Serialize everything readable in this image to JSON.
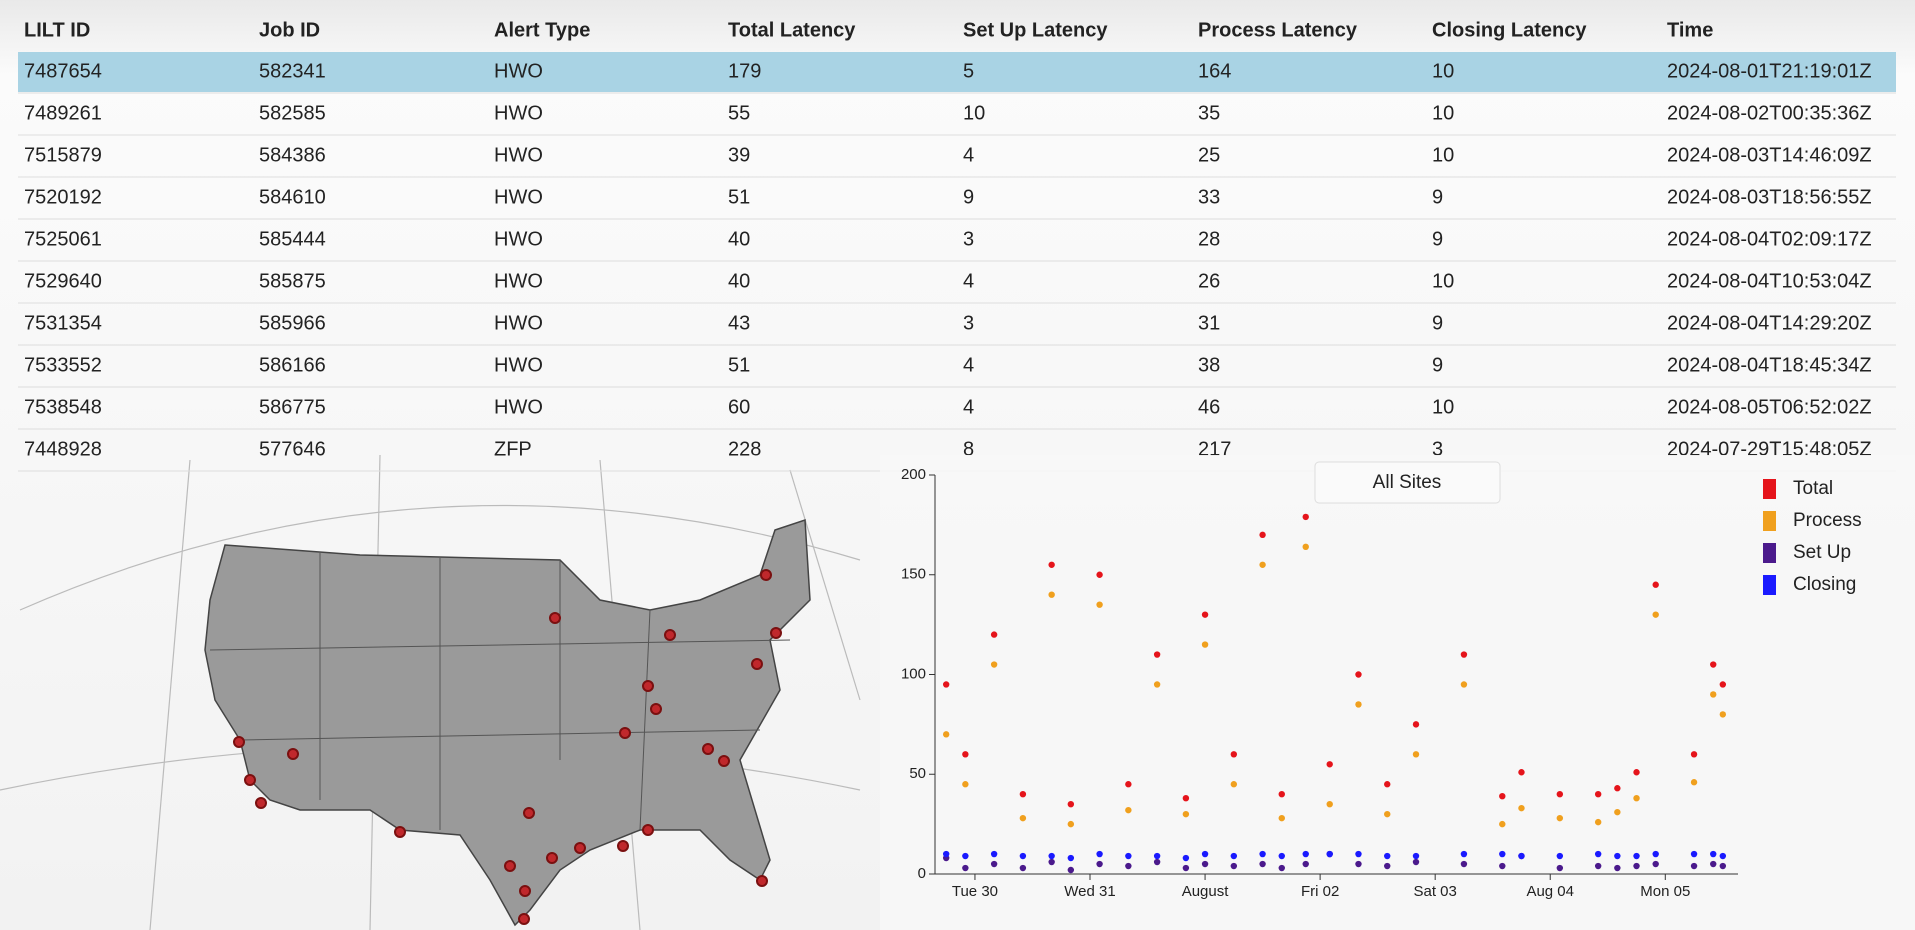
{
  "table": {
    "columns": [
      "LILT ID",
      "Job ID",
      "Alert Type",
      "Total Latency",
      "Set Up Latency",
      "Process Latency",
      "Closing Latency",
      "Time"
    ],
    "rows": [
      [
        7487654,
        582341,
        "HWO",
        179,
        5,
        164,
        10,
        "2024-08-01T21:19:01Z"
      ],
      [
        7489261,
        582585,
        "HWO",
        55,
        10,
        35,
        10,
        "2024-08-02T00:35:36Z"
      ],
      [
        7515879,
        584386,
        "HWO",
        39,
        4,
        25,
        10,
        "2024-08-03T14:46:09Z"
      ],
      [
        7520192,
        584610,
        "HWO",
        51,
        9,
        33,
        9,
        "2024-08-03T18:56:55Z"
      ],
      [
        7525061,
        585444,
        "HWO",
        40,
        3,
        28,
        9,
        "2024-08-04T02:09:17Z"
      ],
      [
        7529640,
        585875,
        "HWO",
        40,
        4,
        26,
        10,
        "2024-08-04T10:53:04Z"
      ],
      [
        7531354,
        585966,
        "HWO",
        43,
        3,
        31,
        9,
        "2024-08-04T14:29:20Z"
      ],
      [
        7533552,
        586166,
        "HWO",
        51,
        4,
        38,
        9,
        "2024-08-04T18:45:34Z"
      ],
      [
        7538548,
        586775,
        "HWO",
        60,
        4,
        46,
        10,
        "2024-08-05T06:52:02Z"
      ],
      [
        7448928,
        577646,
        "ZFP",
        228,
        8,
        217,
        3,
        "2024-07-29T15:48:05Z"
      ]
    ]
  },
  "chart_data": {
    "type": "scatter",
    "filter_button": "All Sites",
    "x": [
      "2024-07-29T18:00Z",
      "2024-07-29T22:00Z",
      "2024-07-30T04:00Z",
      "2024-07-30T10:00Z",
      "2024-07-30T16:00Z",
      "2024-07-30T20:00Z",
      "2024-07-31T02:00Z",
      "2024-07-31T08:00Z",
      "2024-07-31T14:00Z",
      "2024-07-31T20:00Z",
      "2024-08-01T00:00Z",
      "2024-08-01T06:00Z",
      "2024-08-01T12:00Z",
      "2024-08-01T16:00Z",
      "2024-08-01T21:00Z",
      "2024-08-02T02:00Z",
      "2024-08-02T08:00Z",
      "2024-08-02T14:00Z",
      "2024-08-02T20:00Z",
      "2024-08-03T06:00Z",
      "2024-08-03T14:00Z",
      "2024-08-03T18:00Z",
      "2024-08-04T02:00Z",
      "2024-08-04T10:00Z",
      "2024-08-04T14:00Z",
      "2024-08-04T18:00Z",
      "2024-08-04T22:00Z",
      "2024-08-05T06:00Z",
      "2024-08-05T10:00Z",
      "2024-08-05T12:00Z"
    ],
    "series": [
      {
        "name": "Total",
        "color": "#e5141b",
        "values": [
          95,
          60,
          120,
          40,
          155,
          35,
          150,
          45,
          110,
          38,
          130,
          60,
          170,
          40,
          179,
          55,
          100,
          45,
          75,
          110,
          39,
          51,
          40,
          40,
          43,
          51,
          145,
          60,
          105,
          95
        ]
      },
      {
        "name": "Process",
        "color": "#f0a01e",
        "values": [
          70,
          45,
          105,
          28,
          140,
          25,
          135,
          32,
          95,
          30,
          115,
          45,
          155,
          28,
          164,
          35,
          85,
          30,
          60,
          95,
          25,
          33,
          28,
          26,
          31,
          38,
          130,
          46,
          90,
          80
        ]
      },
      {
        "name": "Set Up",
        "color": "#4b1a8c",
        "values": [
          8,
          3,
          5,
          3,
          6,
          2,
          5,
          4,
          6,
          3,
          5,
          4,
          5,
          3,
          5,
          10,
          5,
          4,
          6,
          5,
          4,
          9,
          3,
          4,
          3,
          4,
          5,
          4,
          5,
          4
        ]
      },
      {
        "name": "Closing",
        "color": "#1a1aff",
        "values": [
          10,
          9,
          10,
          9,
          9,
          8,
          10,
          9,
          9,
          8,
          10,
          9,
          10,
          9,
          10,
          10,
          10,
          9,
          9,
          10,
          10,
          9,
          9,
          10,
          9,
          9,
          10,
          10,
          10,
          9
        ]
      }
    ],
    "xlim": [
      "2024-07-29T15:40Z",
      "2024-08-05T15:10Z"
    ],
    "xticks": [
      {
        "value": "2024-07-30",
        "label": "Tue 30"
      },
      {
        "value": "2024-07-31",
        "label": "Wed 31"
      },
      {
        "value": "2024-08-01",
        "label": "August"
      },
      {
        "value": "2024-08-02",
        "label": "Fri 02"
      },
      {
        "value": "2024-08-03",
        "label": "Sat 03"
      },
      {
        "value": "2024-08-04",
        "label": "Aug 04"
      },
      {
        "value": "2024-08-05",
        "label": "Mon 05"
      }
    ],
    "ylim": [
      0,
      200
    ],
    "yticks": [
      0,
      50,
      100,
      150,
      200
    ],
    "legend": "top-right"
  }
}
